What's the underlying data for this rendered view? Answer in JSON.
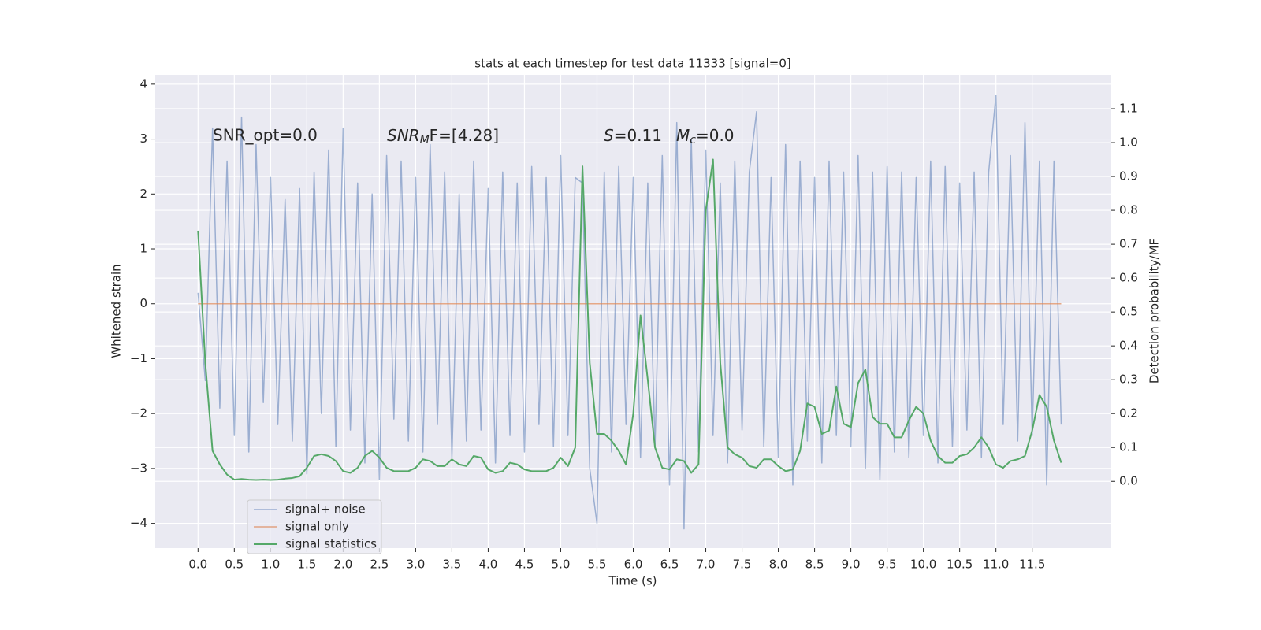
{
  "chart_data": {
    "type": "line",
    "title": "stats at each timestep for test data 11333 [signal=0]",
    "xlabel": "Time (s)",
    "ylabel": "Whitened strain",
    "y2label": "Detection probability/MF",
    "annotations": [
      "SNR_opt=0.0",
      [
        "SNR",
        "M",
        "F=[4.28]"
      ],
      [
        "S",
        "=0.11"
      ],
      [
        "M",
        "c",
        "=0.0"
      ]
    ],
    "grid": true,
    "legend": "lower left",
    "xlim": [
      -0.59,
      12.59
    ],
    "ylim": [
      -4.45,
      4.17
    ],
    "y2lim": [
      -0.197,
      1.2
    ],
    "xticks": [
      {
        "value": 0,
        "label": "0.0"
      },
      0.5,
      {
        "value": 1,
        "label": "1.0"
      },
      1.5,
      {
        "value": 2,
        "label": "2.0"
      },
      2.5,
      {
        "value": 3,
        "label": "3.0"
      },
      3.5,
      {
        "value": 4,
        "label": "4.0"
      },
      4.5,
      {
        "value": 5,
        "label": "5.0"
      },
      5.5,
      {
        "value": 6,
        "label": "6.0"
      },
      6.5,
      {
        "value": 7,
        "label": "7.0"
      },
      7.5,
      {
        "value": 8,
        "label": "8.0"
      },
      8.5,
      {
        "value": 9,
        "label": "9.0"
      },
      9.5,
      {
        "value": 10,
        "label": "10.0"
      },
      10.5,
      {
        "value": 11,
        "label": "11.0"
      },
      11.5
    ],
    "yticks": [
      {
        "value": -4,
        "label": "−4"
      },
      {
        "value": -3,
        "label": "−3"
      },
      {
        "value": -2,
        "label": "−2"
      },
      {
        "value": -1,
        "label": "−1"
      },
      0,
      1,
      2,
      3,
      4
    ],
    "y2ticks": [
      {
        "value": 0,
        "label": "0.0"
      },
      0.1,
      0.2,
      0.3,
      0.4,
      0.5,
      0.6,
      0.7,
      0.8,
      0.9,
      {
        "value": 1,
        "label": "1.0"
      },
      1.1
    ],
    "x": [
      0.0,
      0.1,
      0.2,
      0.3,
      0.4,
      0.5,
      0.6,
      0.7,
      0.8,
      0.9,
      1.0,
      1.1,
      1.2,
      1.3,
      1.4,
      1.5,
      1.6,
      1.7,
      1.8,
      1.9,
      2.0,
      2.1,
      2.2,
      2.3,
      2.4,
      2.5,
      2.6,
      2.7,
      2.8,
      2.9,
      3.0,
      3.1,
      3.2,
      3.3,
      3.4,
      3.5,
      3.6,
      3.7,
      3.8,
      3.9,
      4.0,
      4.1,
      4.2,
      4.3,
      4.4,
      4.5,
      4.6,
      4.7,
      4.8,
      4.9,
      5.0,
      5.1,
      5.2,
      5.3,
      5.4,
      5.5,
      5.6,
      5.7,
      5.8,
      5.9,
      6.0,
      6.1,
      6.2,
      6.3,
      6.4,
      6.5,
      6.6,
      6.7,
      6.8,
      6.9,
      7.0,
      7.1,
      7.2,
      7.3,
      7.4,
      7.5,
      7.6,
      7.7,
      7.8,
      7.9,
      8.0,
      8.1,
      8.2,
      8.3,
      8.4,
      8.5,
      8.6,
      8.7,
      8.8,
      8.9,
      9.0,
      9.1,
      9.2,
      9.3,
      9.4,
      9.5,
      9.6,
      9.7,
      9.8,
      9.9,
      10.0,
      10.1,
      10.2,
      10.3,
      10.4,
      10.5,
      10.6,
      10.7,
      10.8,
      10.9,
      11.0,
      11.1,
      11.2,
      11.3,
      11.4,
      11.5,
      11.6,
      11.7,
      11.8,
      11.9
    ],
    "series": [
      {
        "name": "signal+ noise",
        "color": "#4c72b0",
        "values": [
          0.2,
          -1.4,
          3.2,
          -1.9,
          2.6,
          -2.4,
          3.4,
          -2.7,
          2.9,
          -1.8,
          2.3,
          -2.2,
          1.9,
          -2.5,
          2.1,
          -3.1,
          2.4,
          -2.0,
          2.8,
          -2.6,
          3.2,
          -2.3,
          2.2,
          -2.9,
          2.0,
          -3.2,
          2.7,
          -2.1,
          2.6,
          -2.5,
          2.3,
          -2.7,
          2.9,
          -2.2,
          2.4,
          -2.8,
          2.0,
          -2.5,
          2.6,
          -2.3,
          2.1,
          -2.9,
          2.4,
          -2.4,
          2.2,
          -2.7,
          2.5,
          -2.2,
          2.3,
          -2.6,
          2.7,
          -2.4,
          2.3,
          2.2,
          -3.0,
          -4.0,
          2.4,
          -2.7,
          2.5,
          -2.2,
          2.3,
          -2.8,
          2.2,
          -2.6,
          2.7,
          -3.3,
          3.3,
          -4.1,
          3.0,
          -2.7,
          2.8,
          -2.4,
          2.2,
          -2.9,
          2.6,
          -2.3,
          2.4,
          3.5,
          -2.6,
          2.3,
          -2.8,
          2.9,
          -3.3,
          2.6,
          -2.5,
          2.3,
          -2.9,
          2.6,
          -2.4,
          2.4,
          -2.6,
          2.7,
          -3.0,
          2.4,
          -3.2,
          2.5,
          -2.7,
          2.4,
          -2.8,
          2.3,
          -2.4,
          2.6,
          -2.9,
          2.5,
          -2.6,
          2.2,
          -2.3,
          2.4,
          -2.8,
          2.4,
          3.8,
          -2.2,
          2.7,
          -2.5,
          3.3,
          -2.4,
          2.6,
          -3.3,
          2.6,
          -2.2
        ]
      },
      {
        "name": "signal only",
        "color": "#dd8452",
        "values": [
          0,
          0,
          0,
          0,
          0,
          0,
          0,
          0,
          0,
          0,
          0,
          0,
          0,
          0,
          0,
          0,
          0,
          0,
          0,
          0,
          0,
          0,
          0,
          0,
          0,
          0,
          0,
          0,
          0,
          0,
          0,
          0,
          0,
          0,
          0,
          0,
          0,
          0,
          0,
          0,
          0,
          0,
          0,
          0,
          0,
          0,
          0,
          0,
          0,
          0,
          0,
          0,
          0,
          0,
          0,
          0,
          0,
          0,
          0,
          0,
          0,
          0,
          0,
          0,
          0,
          0,
          0,
          0,
          0,
          0,
          0,
          0,
          0,
          0,
          0,
          0,
          0,
          0,
          0,
          0,
          0,
          0,
          0,
          0,
          0,
          0,
          0,
          0,
          0,
          0,
          0,
          0,
          0,
          0,
          0,
          0,
          0,
          0,
          0,
          0,
          0,
          0,
          0,
          0,
          0,
          0,
          0,
          0,
          0,
          0,
          0,
          0,
          0,
          0,
          0,
          0,
          0,
          0,
          0,
          0
        ]
      },
      {
        "name": "signal statistics",
        "color": "#55a868",
        "axis": "y2",
        "values": [
          0.74,
          0.35,
          0.09,
          0.05,
          0.02,
          0.005,
          0.007,
          0.005,
          0.004,
          0.005,
          0.004,
          0.005,
          0.008,
          0.01,
          0.015,
          0.04,
          0.075,
          0.08,
          0.075,
          0.06,
          0.03,
          0.025,
          0.04,
          0.075,
          0.09,
          0.07,
          0.04,
          0.03,
          0.03,
          0.03,
          0.04,
          0.065,
          0.06,
          0.045,
          0.045,
          0.065,
          0.05,
          0.045,
          0.075,
          0.07,
          0.035,
          0.025,
          0.03,
          0.055,
          0.05,
          0.035,
          0.03,
          0.03,
          0.03,
          0.04,
          0.07,
          0.045,
          0.1,
          0.93,
          0.35,
          0.14,
          0.14,
          0.12,
          0.09,
          0.05,
          0.2,
          0.49,
          0.3,
          0.1,
          0.04,
          0.035,
          0.065,
          0.06,
          0.025,
          0.05,
          0.8,
          0.95,
          0.35,
          0.1,
          0.08,
          0.07,
          0.045,
          0.04,
          0.065,
          0.065,
          0.045,
          0.03,
          0.035,
          0.09,
          0.23,
          0.22,
          0.14,
          0.15,
          0.28,
          0.17,
          0.16,
          0.29,
          0.33,
          0.19,
          0.17,
          0.17,
          0.13,
          0.13,
          0.18,
          0.22,
          0.2,
          0.12,
          0.075,
          0.055,
          0.055,
          0.075,
          0.08,
          0.1,
          0.13,
          0.1,
          0.05,
          0.04,
          0.06,
          0.065,
          0.075,
          0.15,
          0.255,
          0.22,
          0.12,
          0.055
        ]
      }
    ]
  }
}
